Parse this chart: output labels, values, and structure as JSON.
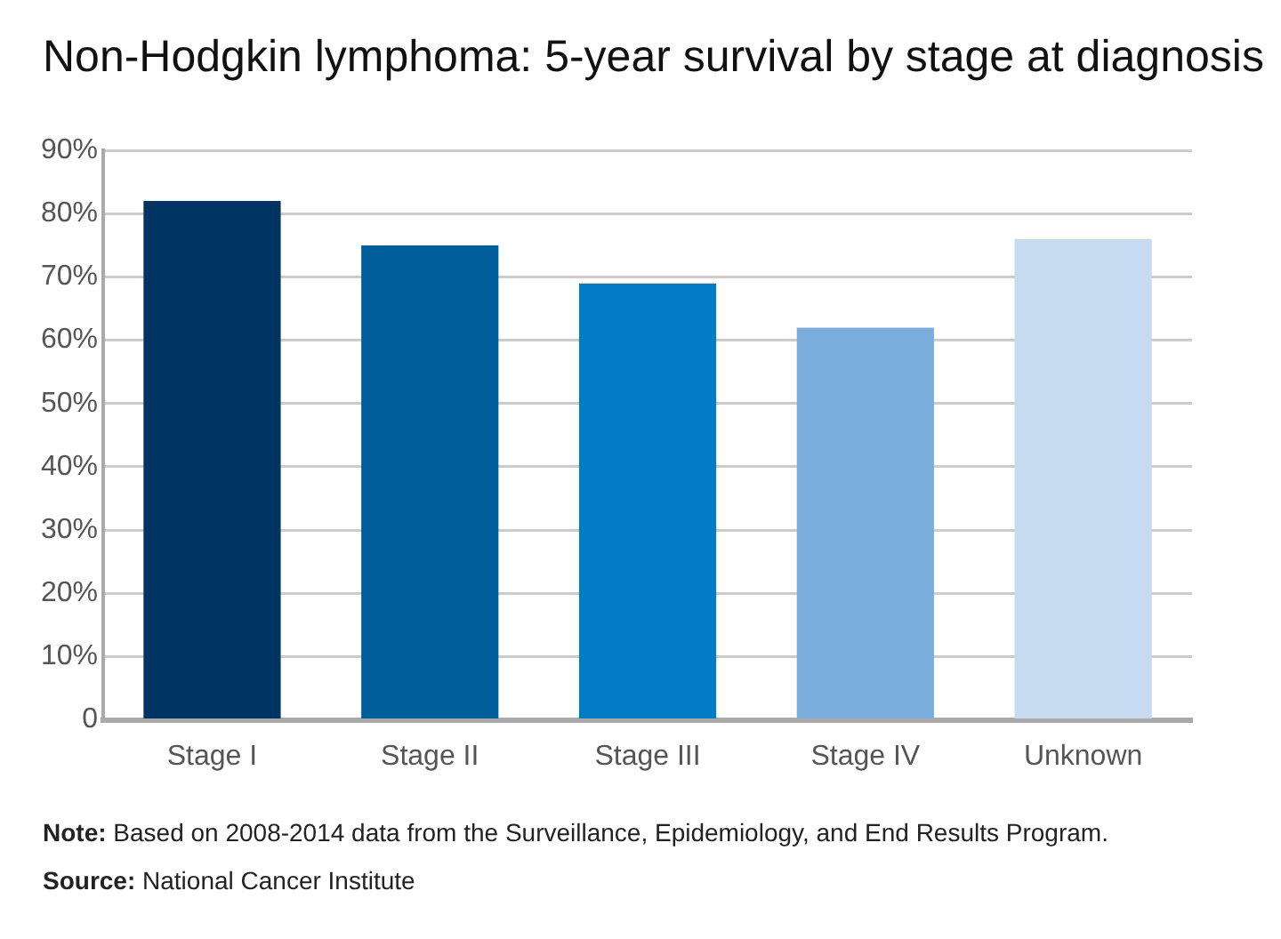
{
  "chart_data": {
    "type": "bar",
    "title": "Non-Hodgkin lymphoma: 5-year survival by stage at diagnosis",
    "categories": [
      "Stage I",
      "Stage II",
      "Stage III",
      "Stage IV",
      "Unknown"
    ],
    "values": [
      82,
      75,
      69,
      62,
      76
    ],
    "colors": [
      "#003462",
      "#005f9a",
      "#007dc5",
      "#7aaddc",
      "#c6dbf0"
    ],
    "ylim": [
      0,
      90
    ],
    "yticks": [
      0,
      {
        "value": 10,
        "label": "10%"
      },
      {
        "value": 20,
        "label": "20%"
      },
      {
        "value": 30,
        "label": "30%"
      },
      {
        "value": 40,
        "label": "40%"
      },
      {
        "value": 50,
        "label": "50%"
      },
      {
        "value": 60,
        "label": "60%"
      },
      {
        "value": 70,
        "label": "70%"
      },
      {
        "value": 80,
        "label": "80%"
      },
      {
        "value": 90,
        "label": "90%"
      }
    ],
    "grid": "y",
    "annotations": [
      "Note: Based on 2008-2014 data from the Surveillance, Epidemiology, and End Results Program.",
      "Source: National Cancer Institute"
    ]
  }
}
